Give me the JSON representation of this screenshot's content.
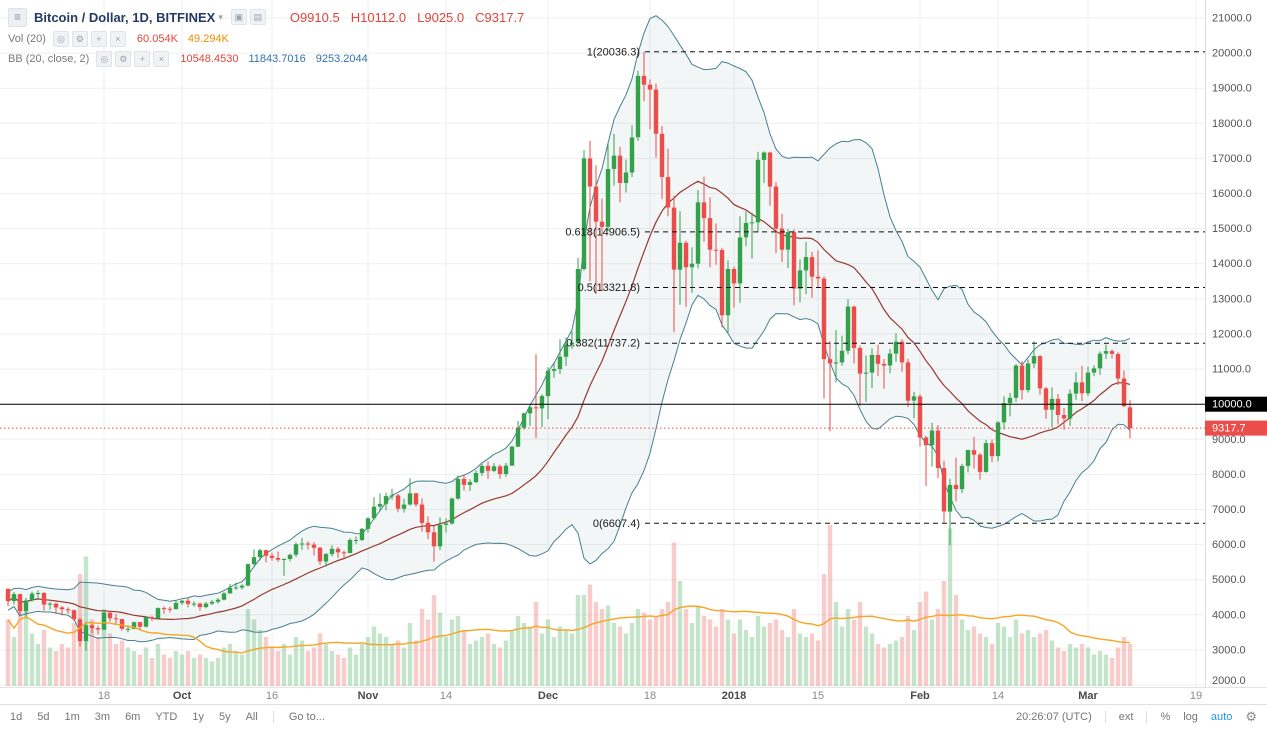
{
  "header": {
    "symbol_title": "Bitcoin / Dollar, 1D, BITFINEX",
    "ohlc": {
      "open": "O9910.5",
      "high": "H10112.0",
      "low": "L9025.0",
      "close": "C9317.7"
    },
    "vol_row": {
      "label": "Vol (20)",
      "value": "60.054K",
      "ma_value": "49.294K"
    },
    "bb_row": {
      "label": "BB (20, close, 2)",
      "basis": "10548.4530",
      "upper": "11843.7016",
      "lower": "9253.2044"
    }
  },
  "icons": {
    "menu": "≡",
    "caret": "▾",
    "box1": "▣",
    "box2": "▤",
    "eye": "◎",
    "gear": "⚙",
    "plus": "+",
    "close": "×"
  },
  "price_axis": {
    "min": 2000,
    "max": 21000,
    "step": 1000,
    "decimals": 1
  },
  "time_axis": [
    {
      "label": "18",
      "day": 16
    },
    {
      "label": "Oct",
      "day": 29,
      "bold": true
    },
    {
      "label": "16",
      "day": 44
    },
    {
      "label": "Nov",
      "day": 60,
      "bold": true
    },
    {
      "label": "14",
      "day": 73
    },
    {
      "label": "Dec",
      "day": 90,
      "bold": true
    },
    {
      "label": "18",
      "day": 107
    },
    {
      "label": "2018",
      "day": 121,
      "bold": true
    },
    {
      "label": "15",
      "day": 135
    },
    {
      "label": "Feb",
      "day": 152,
      "bold": true
    },
    {
      "label": "14",
      "day": 165
    },
    {
      "label": "Mar",
      "day": 180,
      "bold": true
    },
    {
      "label": "19",
      "day": 198
    }
  ],
  "fib_levels": [
    {
      "label": "1(20036.3)",
      "value": 20036.3
    },
    {
      "label": "0.618(14906.5)",
      "value": 14906.5
    },
    {
      "label": "0.5(13321.8)",
      "value": 13321.8
    },
    {
      "label": "0.382(11737.2)",
      "value": 11737.2
    },
    {
      "label": "0(6607.4)",
      "value": 6607.4
    }
  ],
  "price_lines": {
    "horizontal_line": {
      "value": 10000.0,
      "label": "10000.0"
    },
    "last_price": {
      "value": 9317.7,
      "label": "9317.7"
    }
  },
  "toolbar": {
    "ranges": [
      "1d",
      "5d",
      "1m",
      "3m",
      "6m",
      "YTD",
      "1y",
      "5y",
      "All"
    ],
    "goto": "Go to...",
    "clock": "20:26:07 (UTC)",
    "ext": "ext",
    "percent": "%",
    "log": "log",
    "auto": "auto"
  },
  "colors": {
    "accent_blue": "#2196f3",
    "title_navy": "#253b66",
    "red": "#e0453c",
    "orange": "#ef8c00",
    "blue_value": "#3472a8",
    "up": "#33a04a",
    "down": "#eb4d4a",
    "vol_up": "rgba(103,183,120,0.38)",
    "vol_down": "rgba(235,120,115,0.38)",
    "vol_ma": "#f5a623",
    "bb_line": "#47808f",
    "bb_basis": "#97382f",
    "bb_fill": "rgba(71,128,143,0.07)",
    "fib": "#111111",
    "price_line": "#000000",
    "last_price": "#eb4d4a",
    "grid": "#efefef",
    "axis_text": "#555555"
  },
  "chart_data": {
    "type": "candlestick",
    "title": "Bitcoin / Dollar, 1D, BITFINEX",
    "ylim": [
      2000,
      21000
    ],
    "indicators": {
      "bollinger": {
        "length": 20,
        "mult": 2
      },
      "volume_ma": {
        "length": 20
      }
    },
    "candles": [
      [
        4740,
        4750,
        4250,
        4390
      ],
      [
        4390,
        4650,
        4290,
        4590
      ],
      [
        4590,
        4600,
        3970,
        4110
      ],
      [
        4110,
        4480,
        3900,
        4410
      ],
      [
        4410,
        4660,
        4370,
        4600
      ],
      [
        4600,
        4700,
        4420,
        4620
      ],
      [
        4620,
        4650,
        4110,
        4290
      ],
      [
        4290,
        4370,
        4150,
        4320
      ],
      [
        4320,
        4340,
        4030,
        4210
      ],
      [
        4210,
        4250,
        3980,
        4160
      ],
      [
        4160,
        4210,
        4030,
        4130
      ],
      [
        4130,
        4150,
        3820,
        3870
      ],
      [
        3870,
        3920,
        3100,
        3250
      ],
      [
        3250,
        3800,
        2980,
        3700
      ],
      [
        3700,
        3750,
        3470,
        3620
      ],
      [
        3620,
        3690,
        3430,
        3580
      ],
      [
        3580,
        4120,
        3570,
        4060
      ],
      [
        4060,
        4090,
        3800,
        3900
      ],
      [
        3900,
        4030,
        3750,
        3880
      ],
      [
        3880,
        3890,
        3550,
        3600
      ],
      [
        3600,
        3700,
        3500,
        3600
      ],
      [
        3600,
        3810,
        3590,
        3790
      ],
      [
        3790,
        3800,
        3570,
        3660
      ],
      [
        3660,
        3950,
        3640,
        3930
      ],
      [
        3930,
        3970,
        3820,
        3890
      ],
      [
        3890,
        4210,
        3880,
        4190
      ],
      [
        4190,
        4240,
        4030,
        4170
      ],
      [
        4170,
        4230,
        4060,
        4160
      ],
      [
        4160,
        4410,
        4150,
        4340
      ],
      [
        4340,
        4420,
        4280,
        4400
      ],
      [
        4400,
        4470,
        4210,
        4310
      ],
      [
        4310,
        4380,
        4230,
        4320
      ],
      [
        4320,
        4350,
        4110,
        4220
      ],
      [
        4220,
        4370,
        4180,
        4320
      ],
      [
        4320,
        4420,
        4280,
        4370
      ],
      [
        4370,
        4480,
        4320,
        4430
      ],
      [
        4430,
        4640,
        4410,
        4610
      ],
      [
        4610,
        4880,
        4600,
        4770
      ],
      [
        4770,
        4920,
        4710,
        4780
      ],
      [
        4780,
        4870,
        4720,
        4830
      ],
      [
        4830,
        5460,
        4810,
        5440
      ],
      [
        5440,
        5860,
        5400,
        5640
      ],
      [
        5640,
        5880,
        5550,
        5840
      ],
      [
        5840,
        5850,
        5490,
        5680
      ],
      [
        5680,
        5770,
        5540,
        5620
      ],
      [
        5620,
        5800,
        5510,
        5570
      ],
      [
        5570,
        5610,
        5110,
        5590
      ],
      [
        5590,
        5740,
        5520,
        5710
      ],
      [
        5710,
        6060,
        5650,
        6010
      ],
      [
        6010,
        6190,
        5850,
        6030
      ],
      [
        6030,
        6090,
        5860,
        6000
      ],
      [
        6000,
        6070,
        5690,
        5910
      ],
      [
        5910,
        5930,
        5420,
        5520
      ],
      [
        5520,
        5760,
        5370,
        5730
      ],
      [
        5730,
        5980,
        5660,
        5880
      ],
      [
        5880,
        5930,
        5620,
        5780
      ],
      [
        5780,
        5830,
        5630,
        5760
      ],
      [
        5760,
        6180,
        5750,
        6130
      ],
      [
        6130,
        6230,
        6020,
        6130
      ],
      [
        6130,
        6470,
        6100,
        6450
      ],
      [
        6450,
        6780,
        6340,
        6750
      ],
      [
        6750,
        7350,
        6710,
        7080
      ],
      [
        7080,
        7460,
        6950,
        7160
      ],
      [
        7160,
        7480,
        6980,
        7380
      ],
      [
        7380,
        7590,
        7280,
        7400
      ],
      [
        7400,
        7440,
        6920,
        7020
      ],
      [
        7020,
        7310,
        6910,
        7140
      ],
      [
        7140,
        7890,
        7110,
        7460
      ],
      [
        7460,
        7470,
        7080,
        7140
      ],
      [
        7140,
        7320,
        6360,
        6620
      ],
      [
        6620,
        6810,
        6150,
        6350
      ],
      [
        6350,
        6520,
        5510,
        5950
      ],
      [
        5950,
        6780,
        5840,
        6560
      ],
      [
        6560,
        6750,
        6340,
        6600
      ],
      [
        6600,
        7340,
        6570,
        7310
      ],
      [
        7310,
        7970,
        7280,
        7870
      ],
      [
        7870,
        8000,
        7540,
        7700
      ],
      [
        7700,
        7860,
        7530,
        7780
      ],
      [
        7780,
        8110,
        7750,
        8040
      ],
      [
        8040,
        8300,
        7960,
        8240
      ],
      [
        8240,
        8370,
        7870,
        8100
      ],
      [
        8100,
        8320,
        8060,
        8230
      ],
      [
        8230,
        8280,
        7870,
        8010
      ],
      [
        8010,
        8330,
        7930,
        8250
      ],
      [
        8250,
        8810,
        8240,
        8790
      ],
      [
        8790,
        9520,
        8780,
        9330
      ],
      [
        9330,
        9760,
        9270,
        9740
      ],
      [
        9740,
        10000,
        9380,
        9910
      ],
      [
        9910,
        11420,
        9030,
        9880
      ],
      [
        9880,
        10280,
        9350,
        10230
      ],
      [
        10230,
        11050,
        9570,
        10950
      ],
      [
        10950,
        11200,
        10750,
        11000
      ],
      [
        11000,
        11850,
        10860,
        11350
      ],
      [
        11350,
        11900,
        11090,
        11700
      ],
      [
        11700,
        12070,
        11580,
        11750
      ],
      [
        11750,
        14170,
        11690,
        13850
      ],
      [
        13850,
        17230,
        13800,
        17000
      ],
      [
        17000,
        17500,
        13500,
        16200
      ],
      [
        16200,
        16800,
        13150,
        15200
      ],
      [
        15200,
        15850,
        13220,
        15050
      ],
      [
        15050,
        17430,
        14930,
        16700
      ],
      [
        16700,
        17700,
        16230,
        17080
      ],
      [
        17080,
        17330,
        15750,
        16300
      ],
      [
        16300,
        16970,
        16030,
        16600
      ],
      [
        16600,
        17940,
        16470,
        17600
      ],
      [
        17600,
        19500,
        17500,
        19350
      ],
      [
        19350,
        20036,
        18630,
        19100
      ],
      [
        19100,
        19250,
        17830,
        18960
      ],
      [
        18960,
        19130,
        17020,
        17700
      ],
      [
        17700,
        17920,
        15840,
        16470
      ],
      [
        16470,
        17280,
        15350,
        15600
      ],
      [
        15600,
        15940,
        12050,
        13830
      ],
      [
        13830,
        15490,
        12830,
        14600
      ],
      [
        14600,
        14660,
        12770,
        13900
      ],
      [
        13900,
        14470,
        13170,
        14000
      ],
      [
        14000,
        16100,
        13870,
        15750
      ],
      [
        15750,
        16480,
        14630,
        15300
      ],
      [
        15300,
        15890,
        13900,
        14400
      ],
      [
        14400,
        15150,
        13970,
        14390
      ],
      [
        14390,
        14450,
        12180,
        12530
      ],
      [
        12530,
        14100,
        12020,
        13850
      ],
      [
        13850,
        13920,
        12750,
        13440
      ],
      [
        13440,
        15350,
        12890,
        14750
      ],
      [
        14750,
        15500,
        14500,
        15160
      ],
      [
        15160,
        15450,
        14150,
        15180
      ],
      [
        15180,
        17190,
        14890,
        16960
      ],
      [
        16960,
        17200,
        16300,
        17170
      ],
      [
        17170,
        17190,
        15650,
        16200
      ],
      [
        16200,
        16320,
        14300,
        15000
      ],
      [
        15000,
        15420,
        14050,
        14400
      ],
      [
        14400,
        14990,
        13870,
        14900
      ],
      [
        14900,
        14980,
        12820,
        13290
      ],
      [
        13290,
        14120,
        12900,
        13810
      ],
      [
        13810,
        14620,
        13130,
        14190
      ],
      [
        14190,
        14340,
        13030,
        13630
      ],
      [
        13630,
        14380,
        13330,
        13580
      ],
      [
        13580,
        13640,
        10160,
        11280
      ],
      [
        11280,
        11790,
        9230,
        11160
      ],
      [
        11160,
        12110,
        10620,
        11190
      ],
      [
        11190,
        11950,
        11090,
        11520
      ],
      [
        11520,
        12990,
        11420,
        12780
      ],
      [
        12780,
        12810,
        11160,
        11600
      ],
      [
        11600,
        11670,
        9950,
        10870
      ],
      [
        10870,
        11390,
        10070,
        10900
      ],
      [
        10900,
        11590,
        10460,
        11400
      ],
      [
        11400,
        11690,
        10800,
        11150
      ],
      [
        11150,
        11290,
        10440,
        11100
      ],
      [
        11100,
        11570,
        10880,
        11440
      ],
      [
        11440,
        12020,
        11210,
        11780
      ],
      [
        11780,
        11850,
        10920,
        11190
      ],
      [
        11190,
        11290,
        9920,
        10100
      ],
      [
        10100,
        10350,
        9600,
        10220
      ],
      [
        10220,
        10290,
        8790,
        9050
      ],
      [
        9050,
        9100,
        7670,
        8830
      ],
      [
        8830,
        9470,
        8220,
        9250
      ],
      [
        9250,
        9400,
        7890,
        8180
      ],
      [
        8180,
        8390,
        6630,
        6940
      ],
      [
        6940,
        7870,
        5990,
        7700
      ],
      [
        7700,
        8480,
        7230,
        7580
      ],
      [
        7580,
        8300,
        7470,
        8240
      ],
      [
        8240,
        8700,
        8060,
        8690
      ],
      [
        8690,
        9070,
        8160,
        8560
      ],
      [
        8560,
        8610,
        7850,
        8070
      ],
      [
        8070,
        8980,
        8050,
        8890
      ],
      [
        8890,
        8990,
        8340,
        8520
      ],
      [
        8520,
        9520,
        8370,
        9480
      ],
      [
        9480,
        10230,
        9280,
        10030
      ],
      [
        10030,
        10320,
        9650,
        10180
      ],
      [
        10180,
        11140,
        10070,
        11100
      ],
      [
        11100,
        11230,
        10130,
        10400
      ],
      [
        10400,
        11270,
        10330,
        11160
      ],
      [
        11160,
        11790,
        11030,
        11370
      ],
      [
        11370,
        11390,
        10270,
        10450
      ],
      [
        10450,
        10490,
        9580,
        9840
      ],
      [
        9840,
        10480,
        9340,
        10150
      ],
      [
        10150,
        10290,
        9420,
        9690
      ],
      [
        9690,
        9890,
        9270,
        9590
      ],
      [
        9590,
        10420,
        9380,
        10300
      ],
      [
        10300,
        10910,
        10120,
        10620
      ],
      [
        10620,
        11090,
        10080,
        10310
      ],
      [
        10310,
        11070,
        10230,
        10900
      ],
      [
        10900,
        11110,
        10800,
        11020
      ],
      [
        11020,
        11500,
        10830,
        11440
      ],
      [
        11440,
        11700,
        11290,
        11510
      ],
      [
        11510,
        11560,
        11300,
        11430
      ],
      [
        11430,
        11480,
        10550,
        10730
      ],
      [
        10730,
        10950,
        9910,
        9940
      ],
      [
        9910.5,
        10112.0,
        9025.0,
        9317.7
      ]
    ],
    "volumes_k": [
      95,
      70,
      120,
      110,
      75,
      60,
      80,
      55,
      50,
      60,
      55,
      90,
      160,
      185,
      95,
      70,
      110,
      75,
      60,
      65,
      55,
      50,
      45,
      55,
      40,
      60,
      45,
      40,
      50,
      45,
      50,
      40,
      45,
      40,
      35,
      40,
      55,
      60,
      50,
      45,
      110,
      95,
      80,
      70,
      55,
      50,
      60,
      45,
      70,
      65,
      50,
      55,
      75,
      60,
      50,
      45,
      40,
      55,
      45,
      60,
      70,
      85,
      75,
      70,
      60,
      65,
      55,
      90,
      65,
      110,
      95,
      130,
      105,
      70,
      95,
      100,
      80,
      60,
      65,
      70,
      75,
      60,
      55,
      65,
      80,
      100,
      90,
      85,
      120,
      75,
      95,
      70,
      85,
      80,
      75,
      130,
      130,
      145,
      120,
      110,
      115,
      90,
      85,
      75,
      90,
      110,
      105,
      95,
      100,
      110,
      120,
      205,
      150,
      110,
      90,
      115,
      100,
      95,
      85,
      110,
      95,
      75,
      95,
      80,
      70,
      100,
      85,
      90,
      95,
      80,
      70,
      110,
      75,
      70,
      75,
      65,
      160,
      230,
      120,
      85,
      110,
      95,
      120,
      85,
      75,
      60,
      55,
      60,
      65,
      70,
      100,
      80,
      120,
      135,
      95,
      110,
      150,
      225,
      130,
      95,
      80,
      85,
      75,
      70,
      60,
      90,
      85,
      70,
      95,
      75,
      80,
      70,
      75,
      80,
      65,
      55,
      50,
      60,
      55,
      60,
      55,
      45,
      50,
      45,
      40,
      55,
      70,
      60
    ]
  }
}
